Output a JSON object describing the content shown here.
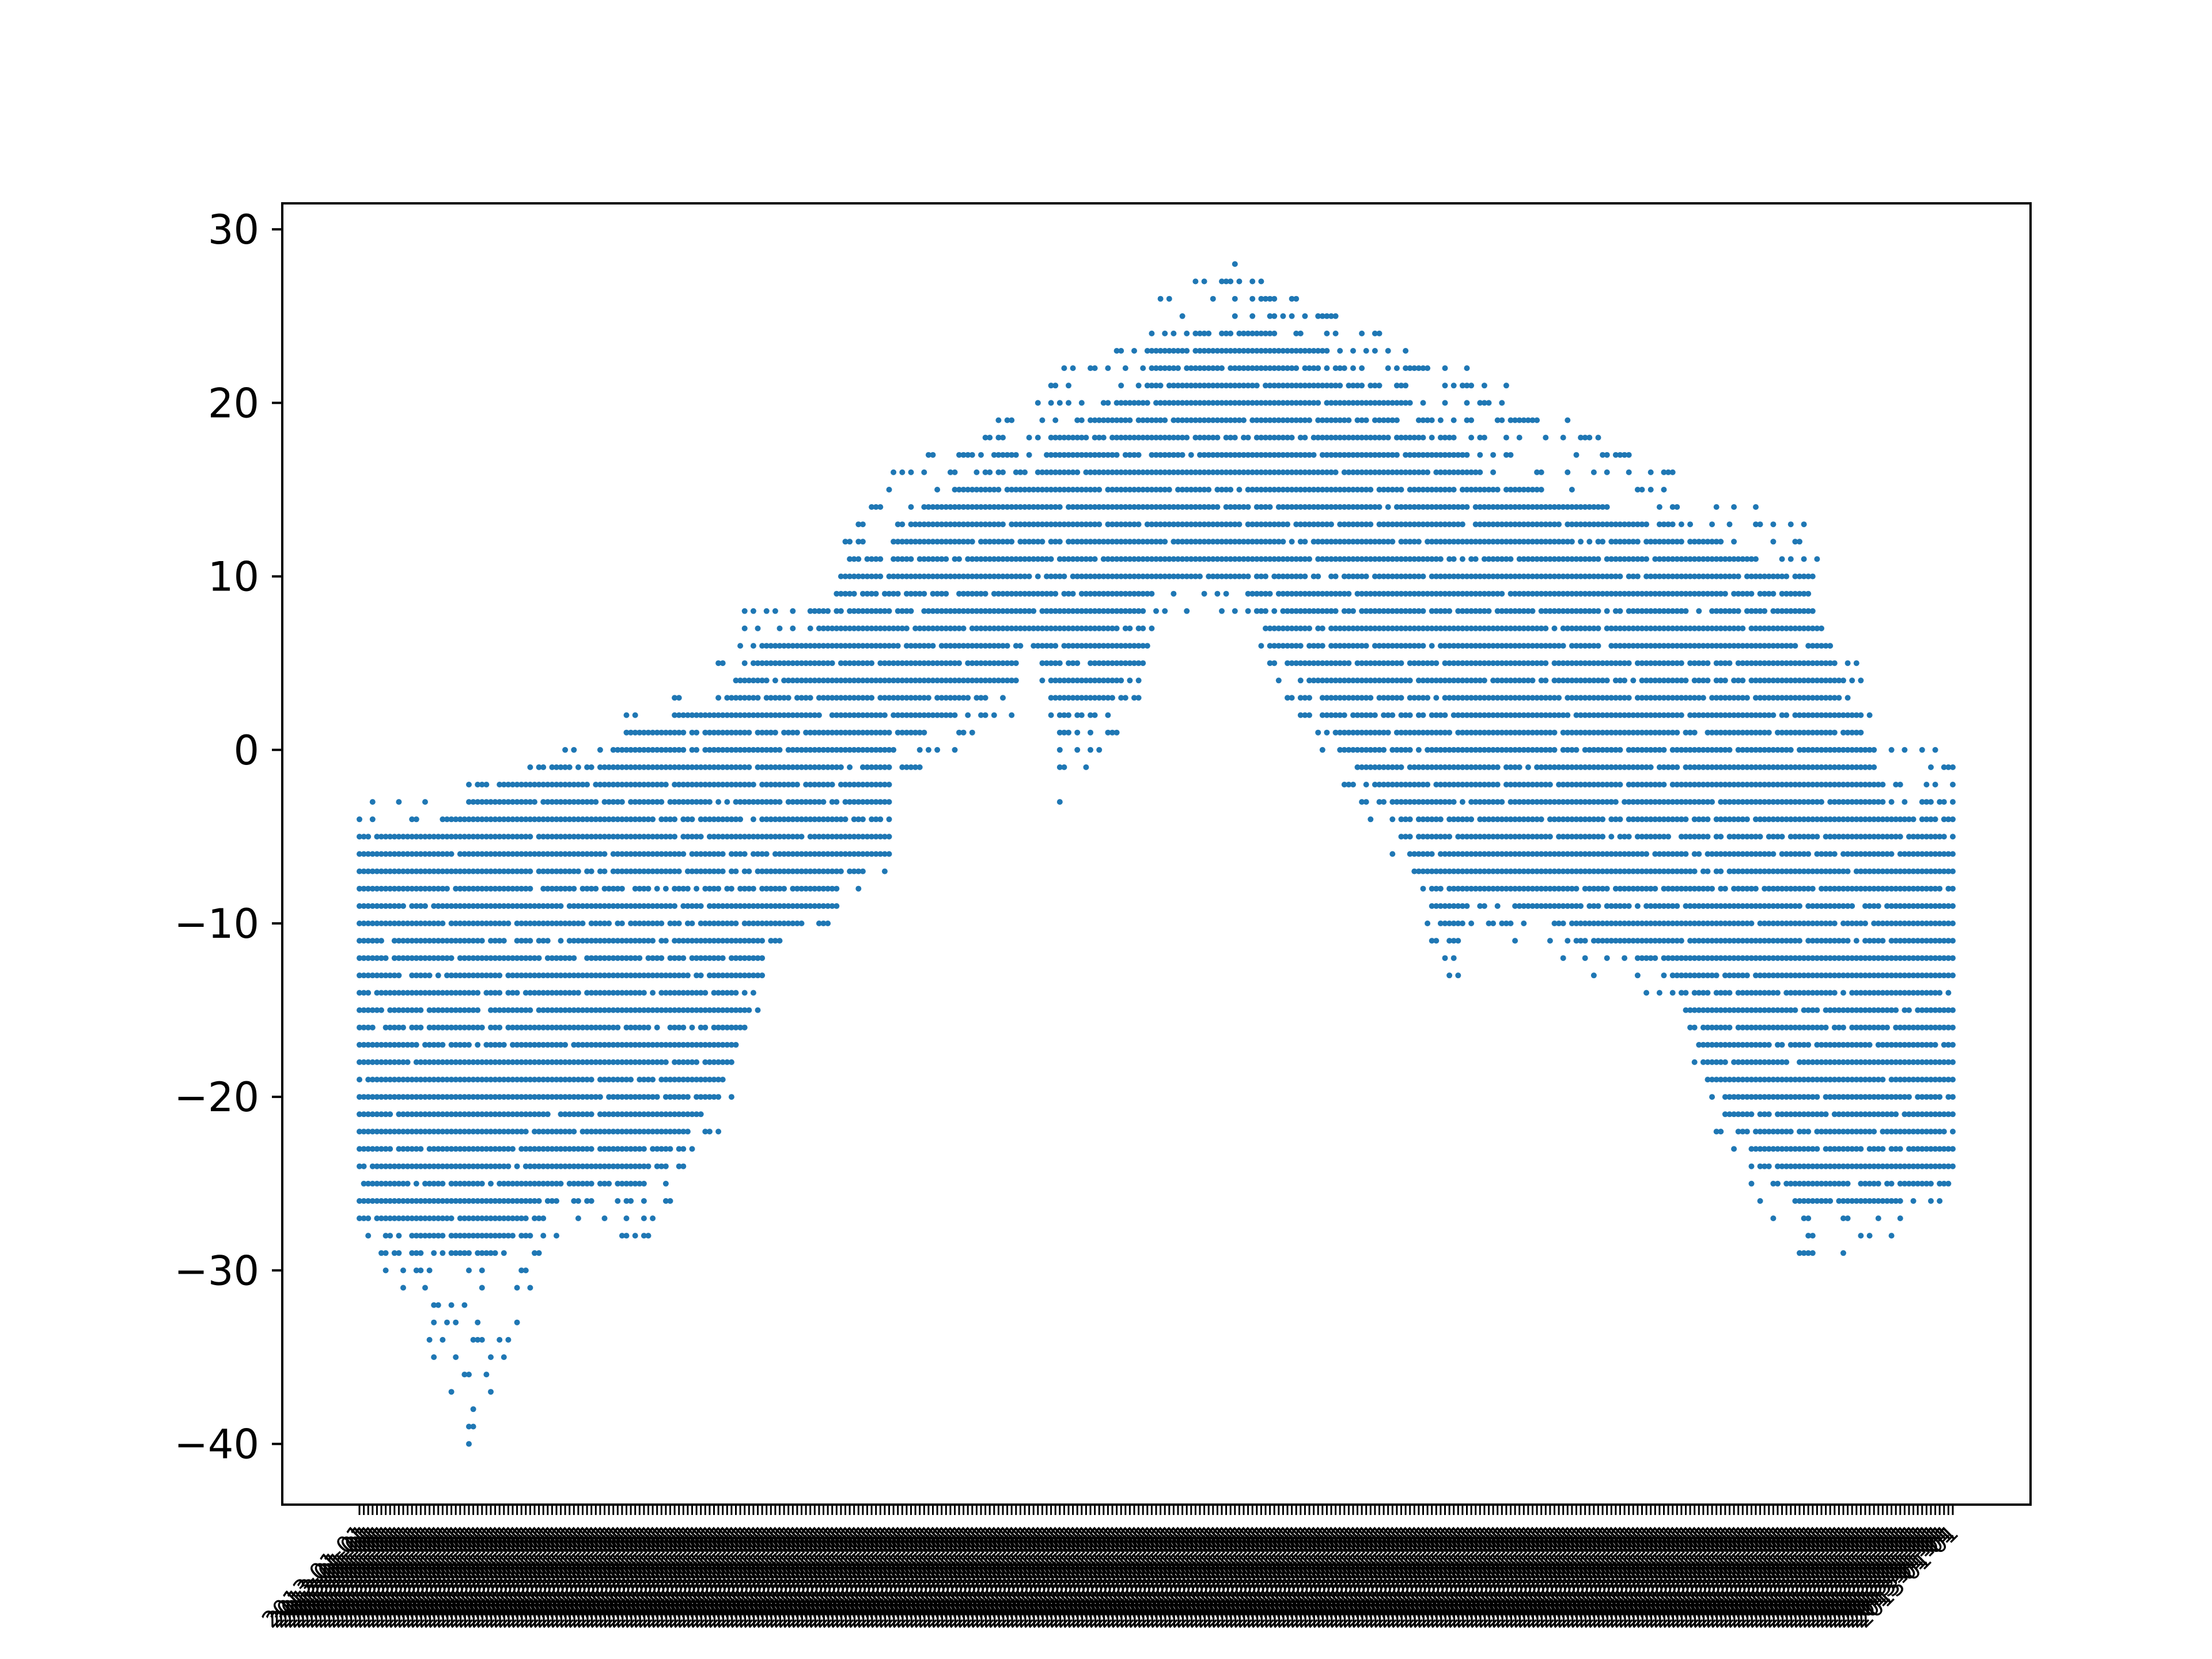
{
  "chart_data": {
    "type": "scatter",
    "title": "",
    "xlabel": "",
    "ylabel": "",
    "ylim": [
      -43.5,
      31.5
    ],
    "yticks": [
      -40,
      -30,
      -20,
      -10,
      0,
      10,
      20,
      30
    ],
    "ytick_labels": [
      "−40",
      "−30",
      "−20",
      "−10",
      "0",
      "10",
      "20",
      "30"
    ],
    "x_category_count": 365,
    "xtick_label_text": "2013-01-01",
    "xtick_rotation_deg": 45,
    "marker_size_px": 10,
    "color": "#1f77b4",
    "grid": false,
    "legend": "none",
    "envelope": {
      "x": [
        0,
        12,
        25,
        45,
        58,
        61,
        82,
        88,
        92,
        104,
        108,
        112,
        121,
        122,
        136,
        150,
        152,
        159,
        160,
        180,
        181,
        200,
        209,
        220,
        240,
        250,
        255,
        300,
        309,
        330,
        350,
        364
      ],
      "upper": [
        -2,
        -3,
        -2,
        0,
        1,
        2,
        5,
        8,
        8,
        9,
        8,
        14,
        15,
        16,
        18,
        20,
        19,
        22,
        22,
        24,
        26,
        28,
        27,
        26,
        23,
        22,
        22,
        16,
        15,
        13,
        0,
        0
      ],
      "lower": [
        -28,
        -32,
        -40,
        -28,
        -27,
        -30,
        -22,
        -18,
        -14,
        -10,
        -10,
        -8,
        -8,
        -2,
        0,
        2,
        6,
        0,
        -3,
        3,
        7,
        8,
        4,
        0,
        -8,
        -14,
        -10,
        -15,
        -22,
        -30,
        -28,
        -26
      ],
      "dense_upper": [
        -4,
        -5,
        -3,
        -1,
        0,
        1,
        3,
        5,
        6,
        7,
        7,
        11,
        12,
        13,
        15,
        16,
        15,
        18,
        18,
        21,
        23,
        25,
        24,
        23,
        20,
        18,
        16,
        13,
        12,
        10,
        -3,
        -4
      ],
      "dense_lower": [
        -27,
        -28,
        -30,
        -26,
        -25,
        -26,
        -20,
        -16,
        -12,
        -9,
        -9,
        -6,
        -6,
        0,
        2,
        4,
        7,
        3,
        0,
        5,
        9,
        10,
        6,
        2,
        -6,
        -12,
        -8,
        -13,
        -20,
        -27,
        -26,
        -25
      ]
    }
  }
}
